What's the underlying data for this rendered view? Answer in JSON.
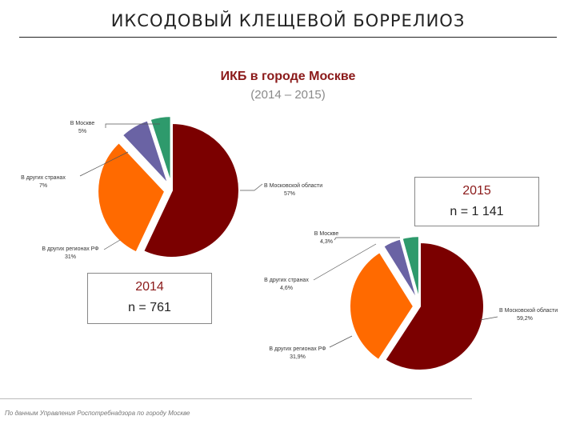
{
  "page": {
    "title": "ИКСОДОВЫЙ КЛЕЩЕВОЙ БОРРЕЛИОЗ",
    "source": "По данным Управления Роспотребнадзора по городу Москве"
  },
  "chart_heading": {
    "title": "ИКБ в городе Москве",
    "subtitle": "(2014 – 2015)"
  },
  "colors": {
    "moscow_region": "#7b0000",
    "other_rf": "#ff6a00",
    "other_countries": "#6a63a4",
    "moscow": "#2e9a6c"
  },
  "chart_data": [
    {
      "type": "pie",
      "year_label": "2014",
      "n_label": "n = 761",
      "slices": [
        {
          "label": "В Московской области",
          "value": 57,
          "value_label": "57%",
          "color": "#7b0000"
        },
        {
          "label": "В других регионах РФ",
          "value": 31,
          "value_label": "31%",
          "color": "#ff6a00"
        },
        {
          "label": "В других странах",
          "value": 7,
          "value_label": "7%",
          "color": "#6a63a4"
        },
        {
          "label": "В Москве",
          "value": 5,
          "value_label": "5%",
          "color": "#2e9a6c"
        }
      ]
    },
    {
      "type": "pie",
      "year_label": "2015",
      "n_label": "n = 1 141",
      "slices": [
        {
          "label": "В Московской области",
          "value": 59.2,
          "value_label": "59,2%",
          "color": "#7b0000"
        },
        {
          "label": "В других регионах РФ",
          "value": 31.9,
          "value_label": "31,9%",
          "color": "#ff6a00"
        },
        {
          "label": "В других странах",
          "value": 4.6,
          "value_label": "4,6%",
          "color": "#6a63a4"
        },
        {
          "label": "В Москве",
          "value": 4.3,
          "value_label": "4,3%",
          "color": "#2e9a6c"
        }
      ]
    }
  ]
}
